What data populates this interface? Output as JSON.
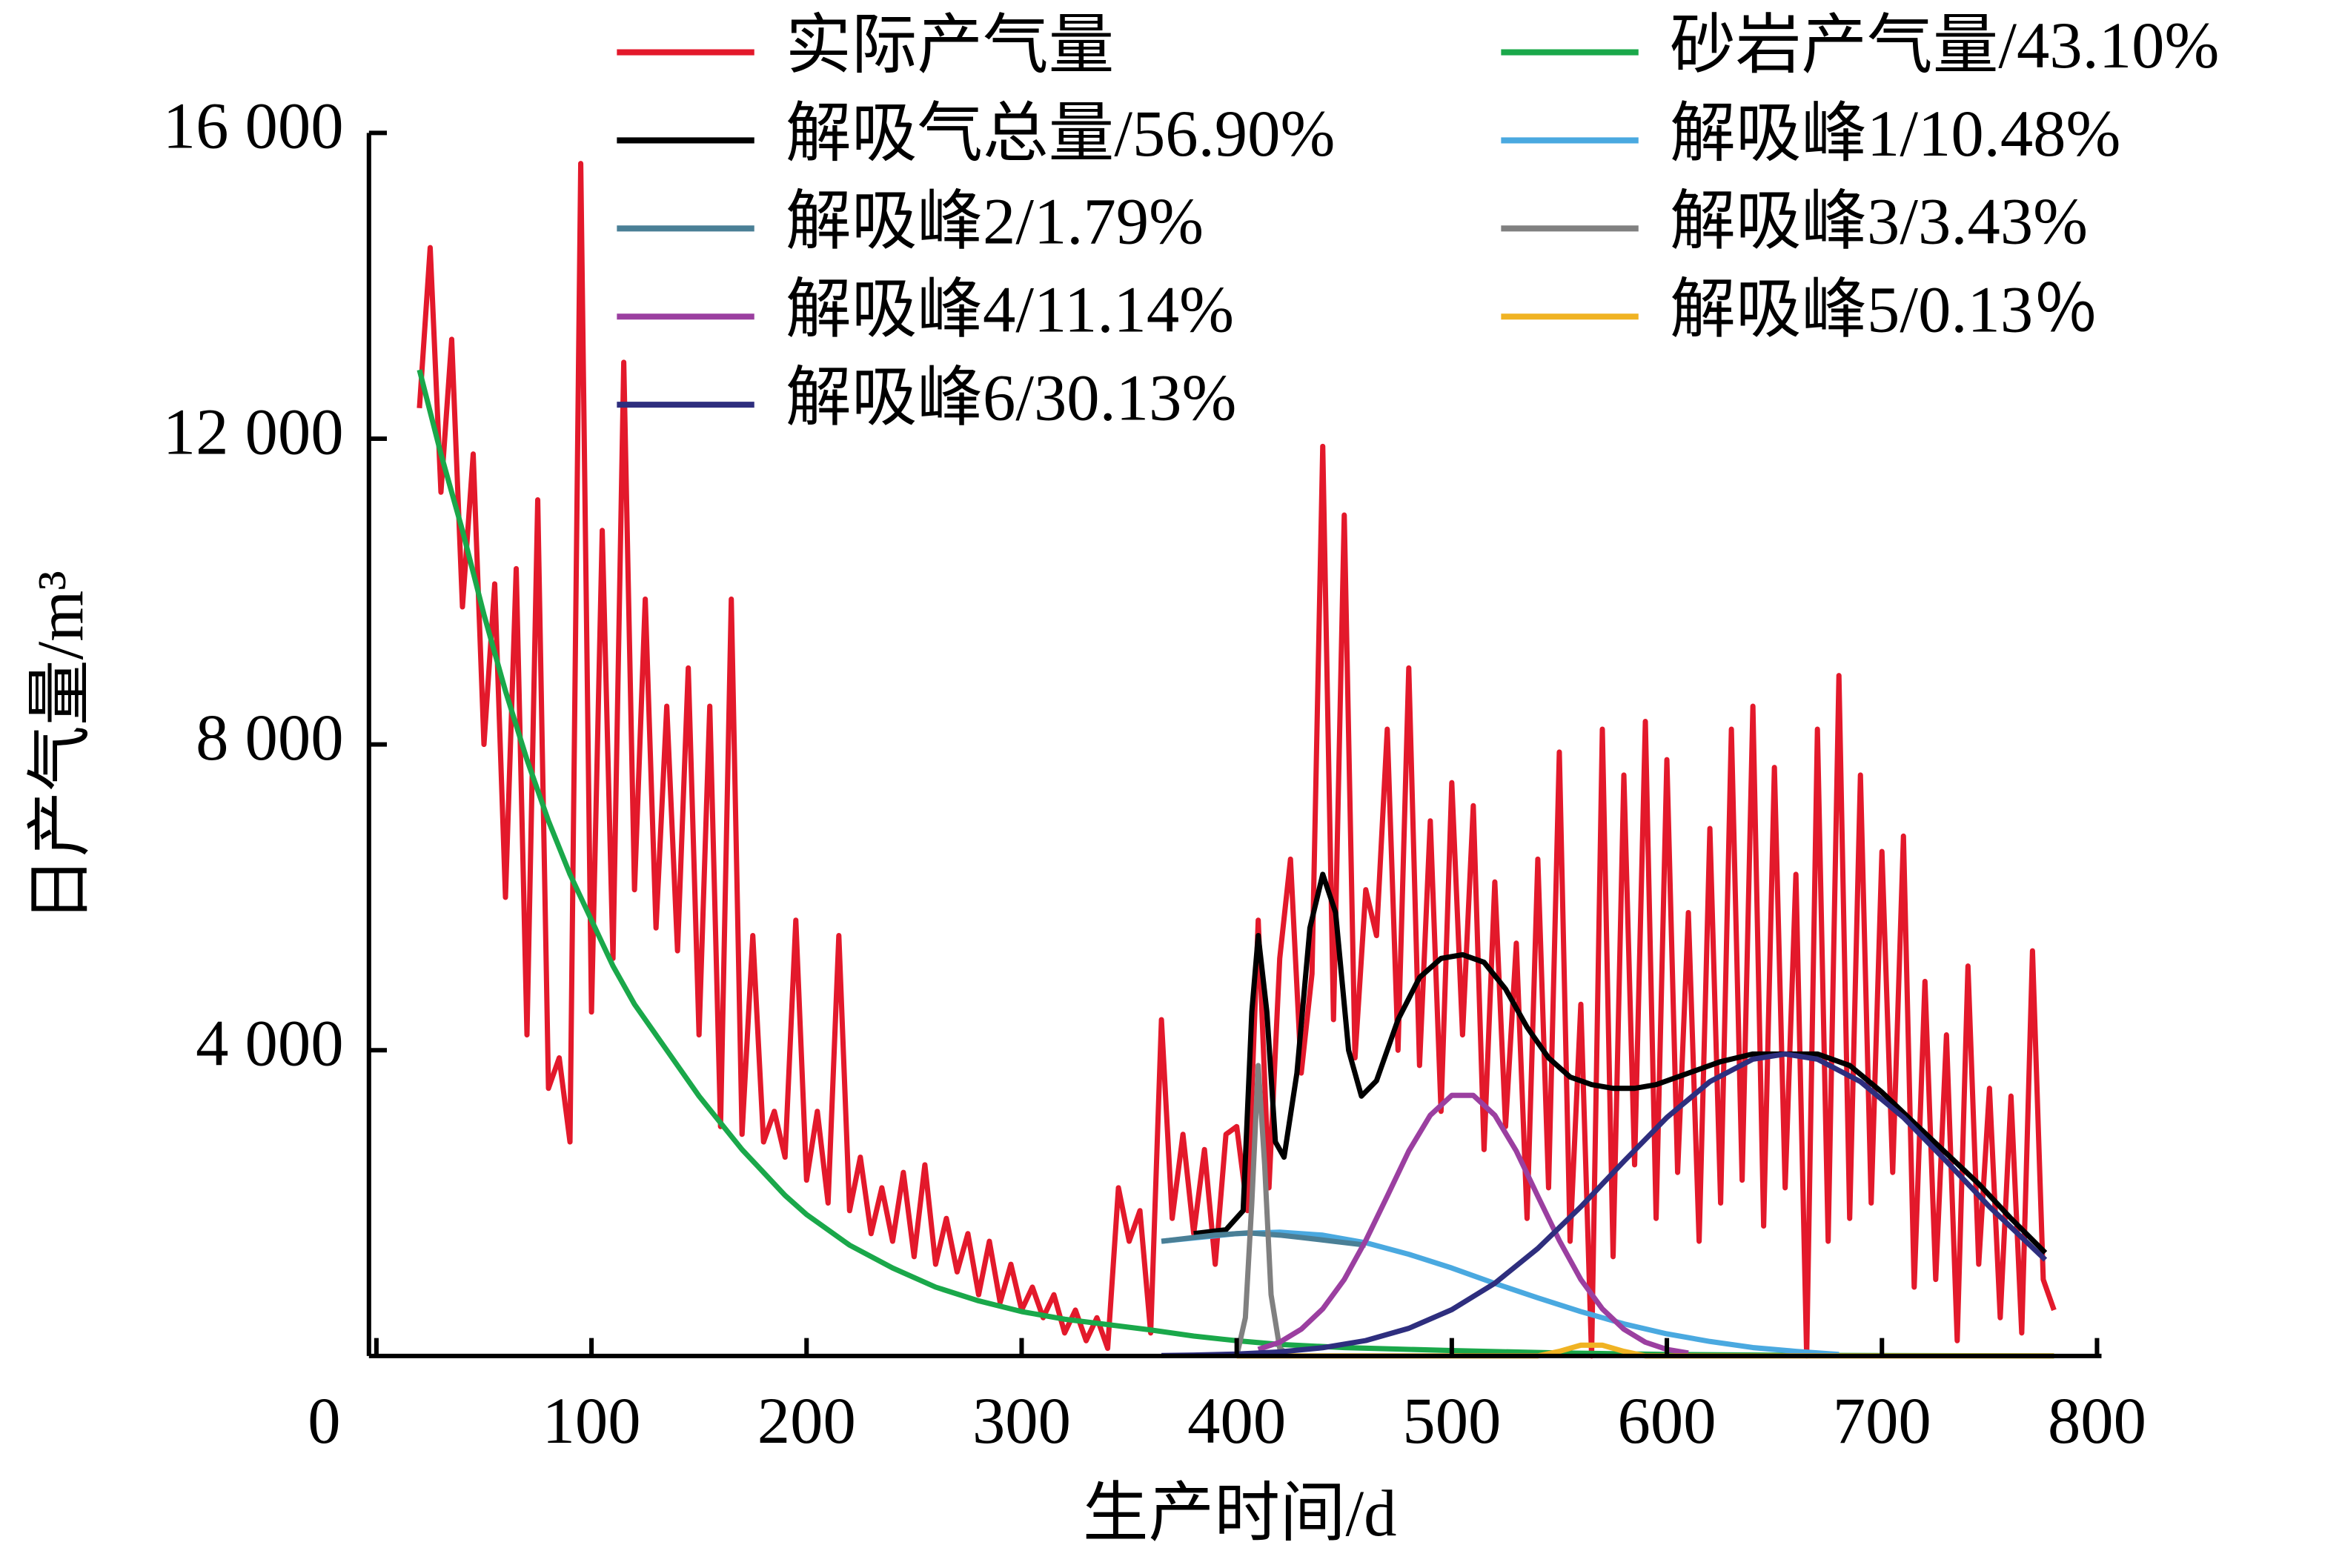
{
  "chart_data": {
    "type": "line",
    "xlabel": "生产时间/d",
    "ylabel": "日产气量/m³",
    "xlim": [
      0,
      800
    ],
    "ylim": [
      0,
      16000
    ],
    "xticks": [
      0,
      100,
      200,
      300,
      400,
      500,
      600,
      700,
      800
    ],
    "yticks": [
      {
        "value": 4000,
        "label": "4 000"
      },
      {
        "value": 8000,
        "label": "8 000"
      },
      {
        "value": 12000,
        "label": "12 000"
      },
      {
        "value": 16000,
        "label": "16 000"
      }
    ],
    "legend": "top",
    "grid": false,
    "series": [
      {
        "name": "实际产气量",
        "color": "#e3192b",
        "x": [
          20,
          25,
          30,
          35,
          40,
          45,
          50,
          55,
          60,
          65,
          70,
          75,
          80,
          85,
          90,
          95,
          100,
          105,
          110,
          115,
          120,
          125,
          130,
          135,
          140,
          145,
          150,
          155,
          160,
          165,
          170,
          175,
          180,
          185,
          190,
          195,
          200,
          205,
          210,
          215,
          220,
          225,
          230,
          235,
          240,
          245,
          250,
          255,
          260,
          265,
          270,
          275,
          280,
          285,
          290,
          295,
          300,
          305,
          310,
          315,
          320,
          325,
          330,
          335,
          340,
          345,
          350,
          355,
          360,
          365,
          370,
          375,
          380,
          385,
          390,
          395,
          400,
          405,
          410,
          415,
          420,
          425,
          430,
          435,
          440,
          445,
          450,
          455,
          460,
          465,
          470,
          475,
          480,
          485,
          490,
          495,
          500,
          505,
          510,
          515,
          520,
          525,
          530,
          535,
          540,
          545,
          550,
          555,
          560,
          565,
          570,
          575,
          580,
          585,
          590,
          595,
          600,
          605,
          610,
          615,
          620,
          625,
          630,
          635,
          640,
          645,
          650,
          655,
          660,
          665,
          670,
          675,
          680,
          685,
          690,
          695,
          700,
          705,
          710,
          715,
          720,
          725,
          730,
          735,
          740,
          745,
          750,
          755,
          760,
          765,
          770,
          775,
          780
        ],
        "values": [
          12400,
          14500,
          11300,
          13300,
          9800,
          11800,
          8000,
          10100,
          6000,
          10300,
          4200,
          11200,
          3500,
          3900,
          2800,
          15600,
          4500,
          10800,
          5200,
          13000,
          6100,
          9900,
          5600,
          8500,
          5300,
          9000,
          4200,
          8500,
          3000,
          9900,
          2900,
          5500,
          2800,
          3200,
          2600,
          5700,
          2300,
          3200,
          2000,
          5500,
          1900,
          2600,
          1600,
          2200,
          1500,
          2400,
          1300,
          2500,
          1200,
          1800,
          1100,
          1600,
          800,
          1500,
          700,
          1200,
          600,
          900,
          500,
          800,
          300,
          600,
          200,
          500,
          100,
          2200,
          1500,
          1900,
          300,
          4400,
          1800,
          2900,
          1600,
          2700,
          1200,
          2900,
          3000,
          1900,
          5700,
          2200,
          5200,
          6500,
          3700,
          5000,
          11900,
          4400,
          11000,
          3900,
          6100,
          5500,
          8200,
          4000,
          9000,
          3800,
          7000,
          3200,
          7500,
          4200,
          7200,
          2700,
          6200,
          3000,
          5400,
          1800,
          6500,
          2200,
          7900,
          1500,
          4600,
          0,
          8200,
          1300,
          7600,
          2500,
          8300,
          1800,
          7800,
          2400,
          5800,
          1500,
          6900,
          2000,
          8200,
          2300,
          8500,
          1700,
          7700,
          2200,
          6300,
          0,
          8200,
          1500,
          8900,
          1800,
          7600,
          2000,
          6600,
          2400,
          6800,
          900,
          4900,
          1000,
          4200,
          200,
          5100,
          1200,
          3500,
          500,
          3400,
          300,
          5300,
          1000,
          600
        ]
      },
      {
        "name": "砂岩产气量/43.10%",
        "color": "#1aa84a",
        "x": [
          20,
          30,
          40,
          50,
          60,
          70,
          80,
          90,
          100,
          110,
          120,
          130,
          140,
          150,
          160,
          170,
          180,
          190,
          200,
          220,
          240,
          260,
          280,
          300,
          320,
          340,
          360,
          380,
          400,
          420,
          450,
          500,
          550,
          600,
          650,
          700,
          780
        ],
        "values": [
          12900,
          11800,
          10800,
          9700,
          8700,
          7800,
          7000,
          6300,
          5700,
          5100,
          4600,
          4200,
          3800,
          3400,
          3050,
          2700,
          2400,
          2100,
          1850,
          1450,
          1150,
          900,
          720,
          580,
          480,
          410,
          340,
          260,
          200,
          150,
          110,
          70,
          40,
          20,
          10,
          5,
          0
        ]
      },
      {
        "name": "解吸气总量/56.90%",
        "color": "#000000",
        "x": [
          380,
          395,
          403,
          407,
          410,
          414,
          418,
          422,
          428,
          434,
          440,
          446,
          452,
          458,
          465,
          475,
          485,
          495,
          505,
          515,
          525,
          535,
          545,
          555,
          565,
          575,
          585,
          595,
          610,
          625,
          640,
          655,
          670,
          685,
          700,
          715,
          730,
          745,
          760,
          776
        ],
        "values": [
          1600,
          1650,
          1900,
          4500,
          5500,
          4500,
          2800,
          2600,
          3700,
          5600,
          6300,
          5800,
          4000,
          3400,
          3600,
          4400,
          4950,
          5200,
          5250,
          5150,
          4800,
          4300,
          3900,
          3650,
          3550,
          3500,
          3500,
          3550,
          3700,
          3850,
          3950,
          3950,
          3950,
          3800,
          3450,
          3050,
          2650,
          2250,
          1800,
          1350
        ]
      },
      {
        "name": "解吸峰1/10.48%",
        "color": "#4aa9e0",
        "x": [
          365,
          400,
          420,
          440,
          460,
          480,
          500,
          520,
          540,
          560,
          580,
          600,
          620,
          640,
          660,
          680
        ],
        "values": [
          1500,
          1600,
          1620,
          1580,
          1480,
          1330,
          1150,
          950,
          760,
          580,
          420,
          290,
          190,
          110,
          60,
          20
        ]
      },
      {
        "name": "解吸峰2/1.79%",
        "color": "#4a7f96",
        "x": [
          365,
          380,
          390,
          400,
          405,
          410,
          420,
          430,
          445,
          460
        ],
        "values": [
          1500,
          1550,
          1580,
          1600,
          1610,
          1600,
          1580,
          1550,
          1500,
          1450
        ]
      },
      {
        "name": "解吸峰3/3.43%",
        "color": "#808080",
        "x": [
          400,
          404,
          407,
          410,
          413,
          416,
          420,
          425
        ],
        "values": [
          0,
          500,
          2000,
          3800,
          2500,
          800,
          100,
          0
        ]
      },
      {
        "name": "解吸峰4/11.14%",
        "color": "#9b3fa0",
        "x": [
          410,
          420,
          430,
          440,
          450,
          460,
          470,
          480,
          490,
          500,
          510,
          520,
          530,
          540,
          550,
          560,
          570,
          580,
          590,
          600,
          610
        ],
        "values": [
          86,
          180,
          350,
          615,
          1000,
          1510,
          2090,
          2680,
          3150,
          3410,
          3410,
          3150,
          2680,
          2090,
          1510,
          1000,
          615,
          350,
          180,
          86,
          40
        ]
      },
      {
        "name": "解吸峰5/0.13％",
        "color": "#f0b323",
        "x": [
          400,
          540,
          550,
          560,
          570,
          580,
          590,
          780
        ],
        "values": [
          0,
          0,
          60,
          140,
          140,
          60,
          0,
          0
        ]
      },
      {
        "name": "解吸峰6/30.13%",
        "color": "#2e2e7e",
        "x": [
          365,
          380,
          400,
          420,
          440,
          460,
          480,
          500,
          520,
          540,
          560,
          580,
          600,
          620,
          640,
          655,
          670,
          690,
          710,
          730,
          750,
          776
        ],
        "values": [
          6,
          11,
          25,
          53,
          107,
          202,
          361,
          605,
          951,
          1406,
          1952,
          2546,
          3119,
          3589,
          3881,
          3950,
          3881,
          3589,
          3119,
          2546,
          1952,
          1258
        ]
      }
    ]
  }
}
